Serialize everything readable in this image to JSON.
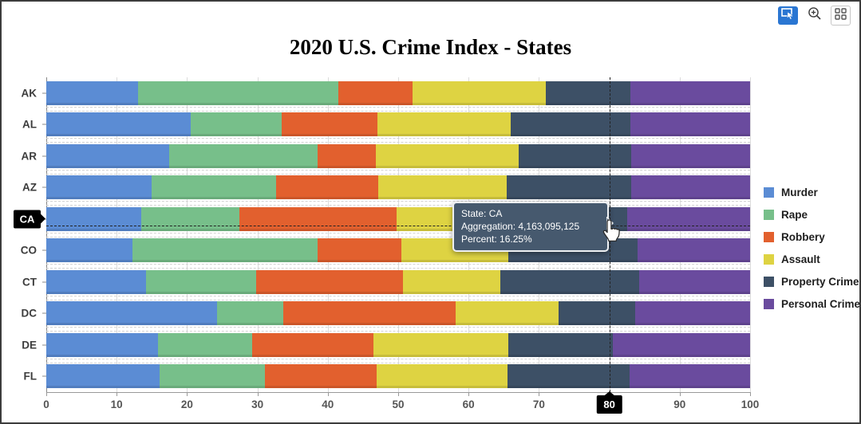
{
  "title": "2020 U.S. Crime Index - States",
  "toolbar": {
    "buttons": [
      {
        "icon": "selection-tool-icon",
        "active": true,
        "color": "#2a76d2"
      },
      {
        "icon": "zoom-in-icon",
        "active": false
      },
      {
        "icon": "grid-menu-icon",
        "active": false
      }
    ]
  },
  "chart_data": {
    "type": "bar",
    "orientation": "horizontal-stacked",
    "title": "2020 U.S. Crime Index - States",
    "categories": [
      "AK",
      "AL",
      "AR",
      "AZ",
      "CA",
      "CO",
      "CT",
      "DC",
      "DE",
      "FL"
    ],
    "series": [
      {
        "name": "Murder",
        "color": "#5b8cd4",
        "values": [
          13.0,
          20.5,
          17.5,
          15.0,
          13.5,
          12.3,
          14.2,
          24.3,
          15.9,
          16.1
        ]
      },
      {
        "name": "Rape",
        "color": "#77bf8a",
        "values": [
          28.5,
          13.0,
          21.1,
          17.7,
          13.9,
          26.3,
          15.6,
          9.4,
          13.3,
          15.0
        ]
      },
      {
        "name": "Robbery",
        "color": "#e2602e",
        "values": [
          10.5,
          13.5,
          8.2,
          14.5,
          22.4,
          11.8,
          20.9,
          24.5,
          17.3,
          15.8
        ]
      },
      {
        "name": "Assault",
        "color": "#ded342",
        "values": [
          19.0,
          19.0,
          20.3,
          18.2,
          16.5,
          15.3,
          13.8,
          14.6,
          19.1,
          18.6
        ]
      },
      {
        "name": "Property Crime",
        "color": "#3d5066",
        "values": [
          12.0,
          17.0,
          16.0,
          17.7,
          16.25,
          18.3,
          19.8,
          10.9,
          14.9,
          17.4
        ]
      },
      {
        "name": "Personal Crime",
        "color": "#6a4b9e",
        "values": [
          17.0,
          17.0,
          16.9,
          16.9,
          17.45,
          16.0,
          15.7,
          16.3,
          19.5,
          17.1
        ]
      }
    ],
    "xlabel": "",
    "ylabel": "",
    "xlim": [
      0,
      100
    ],
    "x_ticks": [
      0,
      10,
      20,
      30,
      40,
      50,
      60,
      70,
      80,
      90,
      100
    ],
    "grid": "vertical",
    "legend_position": "right"
  },
  "crosshair": {
    "x_value": 80,
    "x_label": "80",
    "category": "CA",
    "y_label": "CA"
  },
  "tooltip": {
    "line1": "State: CA",
    "line2": "Aggregation: 4,163,095,125",
    "line3": "Percent: 16.25%",
    "bg_color": "#46596e"
  }
}
